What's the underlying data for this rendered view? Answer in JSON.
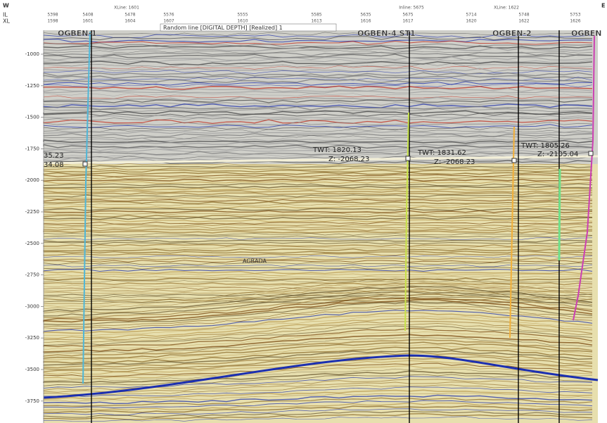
{
  "header": {
    "direction_left": "W",
    "direction_right": "E",
    "row_labels": [
      "IL",
      "XL"
    ],
    "il": [
      "5398",
      "5408",
      "5478",
      "5576",
      "5555",
      "5585",
      "5635",
      "5675",
      "5714",
      "5748",
      "5753"
    ],
    "xl": [
      "1598",
      "1601",
      "1604",
      "1607",
      "1610",
      "1613",
      "1616",
      "1617",
      "1620",
      "1622",
      "1626"
    ],
    "markers": [
      "XLine: 1601",
      "Inline: 5675",
      "XLine: 1622"
    ],
    "line_info": "Random line [DIGITAL DEPTH] [Realized] 1"
  },
  "axis": {
    "labels": [
      "-1000",
      "-1250",
      "-1500",
      "-1750",
      "-2000",
      "-2250",
      "-2500",
      "-2750",
      "-3000",
      "-3250",
      "-3500",
      "-3750"
    ]
  },
  "wells": [
    "OGBEN-1",
    "OGBEN-4 ST1",
    "OGBEN-2",
    "OGBEN"
  ],
  "annotations": [
    "35.23",
    "34.08",
    "TWT: 1820.13",
    "Z: -2068.23",
    "TWT: 1831.62",
    "Z: -2068.23",
    "TWT: 1805.26",
    "Z: -2105.04"
  ],
  "formation": "AGBADA"
}
